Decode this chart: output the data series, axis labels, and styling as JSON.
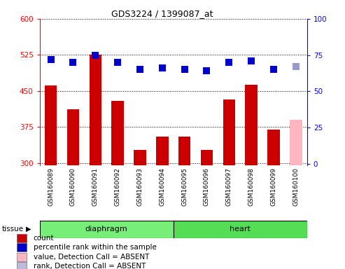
{
  "title": "GDS3224 / 1399087_at",
  "samples": [
    "GSM160089",
    "GSM160090",
    "GSM160091",
    "GSM160092",
    "GSM160093",
    "GSM160094",
    "GSM160095",
    "GSM160096",
    "GSM160097",
    "GSM160098",
    "GSM160099",
    "GSM160100"
  ],
  "bar_values": [
    462,
    412,
    526,
    430,
    327,
    355,
    355,
    328,
    432,
    463,
    370,
    390
  ],
  "bar_colors": [
    "#cc0000",
    "#cc0000",
    "#cc0000",
    "#cc0000",
    "#cc0000",
    "#cc0000",
    "#cc0000",
    "#cc0000",
    "#cc0000",
    "#cc0000",
    "#cc0000",
    "#ffb6c1"
  ],
  "rank_values": [
    72,
    70,
    75,
    70,
    65,
    66,
    65,
    64,
    70,
    71,
    65,
    67
  ],
  "rank_colors": [
    "#0000cc",
    "#0000cc",
    "#0000cc",
    "#0000cc",
    "#0000cc",
    "#0000cc",
    "#0000cc",
    "#0000cc",
    "#0000cc",
    "#0000cc",
    "#0000cc",
    "#9999cc"
  ],
  "ylim_left": [
    295,
    600
  ],
  "ylim_right": [
    -1,
    100
  ],
  "yticks_left": [
    300,
    375,
    450,
    525,
    600
  ],
  "yticks_right": [
    0,
    25,
    50,
    75,
    100
  ],
  "tissue_groups": [
    {
      "label": "diaphragm",
      "start": 0,
      "end": 6,
      "color": "#77ee77"
    },
    {
      "label": "heart",
      "start": 6,
      "end": 12,
      "color": "#55dd55"
    }
  ],
  "tissue_label": "tissue",
  "legend_items": [
    {
      "label": "count",
      "color": "#cc0000"
    },
    {
      "label": "percentile rank within the sample",
      "color": "#0000cc"
    },
    {
      "label": "value, Detection Call = ABSENT",
      "color": "#ffb6c1"
    },
    {
      "label": "rank, Detection Call = ABSENT",
      "color": "#bbbbdd"
    }
  ],
  "bar_width": 0.55,
  "marker_size": 7,
  "plot_bg_color": "#ffffff",
  "tick_bg_color": "#cccccc",
  "grid_color": "#000000"
}
